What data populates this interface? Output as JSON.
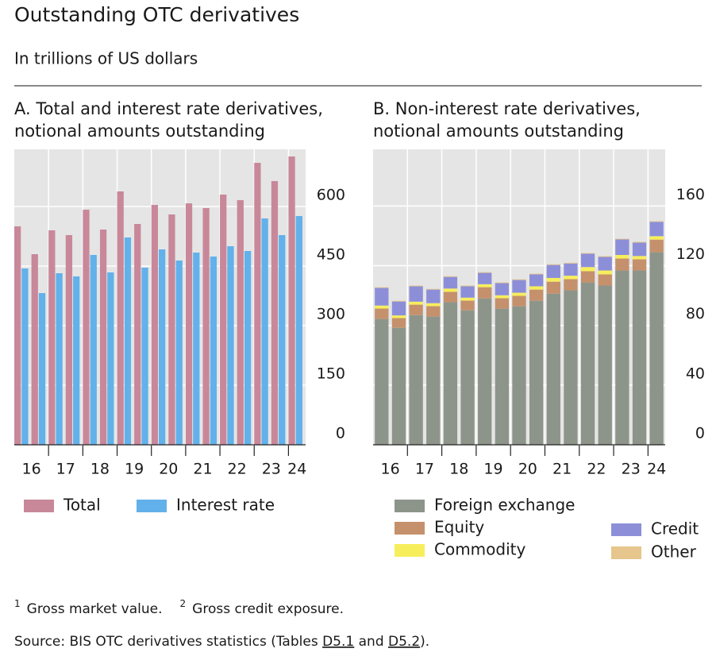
{
  "header": {
    "title": "Outstanding OTC derivatives",
    "subtitle": "In trillions of US dollars"
  },
  "chart_data": [
    {
      "type": "grouped_bar",
      "title": [
        "A. Total and interest rate derivatives,",
        "notional amounts outstanding"
      ],
      "categories": [
        "16",
        null,
        "17",
        null,
        "18",
        null,
        "19",
        null,
        "20",
        null,
        "21",
        null,
        "22",
        null,
        "23",
        null,
        "24"
      ],
      "series": [
        {
          "name": "Total",
          "color": "#c8889a",
          "values": [
            550,
            480,
            540,
            528,
            592,
            542,
            638,
            556,
            604,
            580,
            608,
            596,
            630,
            616,
            710,
            664,
            726
          ]
        },
        {
          "name": "Interest rate",
          "color": "#62b1ea",
          "values": [
            444,
            382,
            432,
            424,
            478,
            434,
            522,
            446,
            492,
            464,
            484,
            474,
            500,
            488,
            570,
            528,
            576
          ]
        }
      ],
      "ylim": [
        0,
        744
      ],
      "yticks": [
        0,
        150,
        300,
        450,
        600
      ],
      "grid": true,
      "legend": "bottom"
    },
    {
      "type": "stacked_bar",
      "title": [
        "B. Non-interest rate derivatives,",
        "notional amounts outstanding"
      ],
      "categories": [
        "16",
        null,
        "17",
        null,
        "18",
        null,
        "19",
        null,
        "20",
        null,
        "21",
        null,
        "22",
        null,
        "23",
        null,
        "24"
      ],
      "series": [
        {
          "name": "Foreign exchange",
          "color": "#8d958b",
          "values": [
            84.3,
            78.4,
            86.9,
            85.9,
            95.5,
            90.1,
            98.1,
            91.2,
            92.8,
            96.5,
            101.3,
            103.5,
            108.8,
            106.7,
            116.8,
            116.8,
            129
          ]
        },
        {
          "name": "Equity",
          "color": "#c4916c",
          "values": [
            7,
            6.5,
            7,
            7,
            7,
            6.5,
            7.5,
            7,
            7,
            7.5,
            8,
            7.5,
            7.5,
            7.5,
            8,
            7.5,
            8.5
          ]
        },
        {
          "name": "Commodity",
          "color": "#f7ee5c",
          "values": [
            2,
            1.8,
            2,
            2,
            2.2,
            2,
            2,
            2,
            2.1,
            2.2,
            2.5,
            2.3,
            2.8,
            2.6,
            2.4,
            2.2,
            2.3
          ]
        },
        {
          "name": "Credit",
          "color": "#8c8fd8",
          "values": [
            11.8,
            9.3,
            10.3,
            9.1,
            7.8,
            7.6,
            7.6,
            8.1,
            8.5,
            8,
            8.7,
            8.2,
            8.9,
            9.1,
            10.4,
            9,
            9.6
          ]
        },
        {
          "name": "Other",
          "color": "#e6c68c",
          "values": [
            0.5,
            0.5,
            0.5,
            0.5,
            0.5,
            0.5,
            0.5,
            0.5,
            0.5,
            0.5,
            0.5,
            0.5,
            0.5,
            0.5,
            0.5,
            0.5,
            0.5
          ]
        }
      ],
      "ylim": [
        0,
        198
      ],
      "yticks": [
        0,
        40,
        80,
        120,
        160
      ],
      "grid": true,
      "legend": "bottom"
    }
  ],
  "footnotes": [
    {
      "mark": "1",
      "text": "Gross market value."
    },
    {
      "mark": "2",
      "text": "Gross credit exposure."
    }
  ],
  "source": [
    "Source: BIS OTC derivatives statistics (Tables ",
    "D5.1",
    " and ",
    "D5.2",
    ")."
  ]
}
